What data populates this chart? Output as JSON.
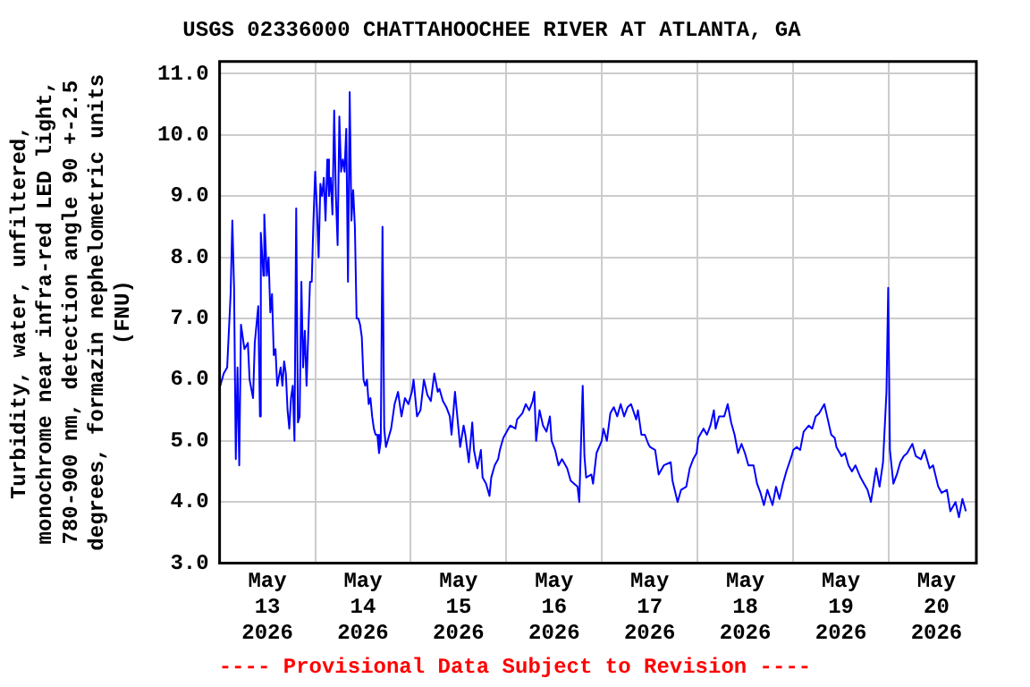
{
  "chart_data": {
    "type": "line",
    "title": "USGS 02336000 CHATTAHOOCHEE RIVER AT ATLANTA, GA",
    "ylabel": "Turbidity, water, unfiltered, monochrome near infra-red LED light, 780-900 nm, detection angle 90 +-2.5 degrees, formazin nephelometric units (FNU)",
    "annotations": [
      "---- Provisional Data Subject to Revision ----"
    ],
    "xlim": [
      "2026-05-13T00:00",
      "2026-05-20T22:00"
    ],
    "xticks": [
      {
        "value": "2026-05-13T12:00",
        "label": "May 13 2026"
      },
      {
        "value": "2026-05-14T00:00",
        "label": null
      },
      {
        "value": "2026-05-14T12:00",
        "label": "May 14 2026"
      },
      {
        "value": "2026-05-15T00:00",
        "label": null
      },
      {
        "value": "2026-05-15T12:00",
        "label": "May 15 2026"
      },
      {
        "value": "2026-05-16T00:00",
        "label": null
      },
      {
        "value": "2026-05-16T12:00",
        "label": "May 16 2026"
      },
      {
        "value": "2026-05-17T00:00",
        "label": null
      },
      {
        "value": "2026-05-17T12:00",
        "label": "May 17 2026"
      },
      {
        "value": "2026-05-18T00:00",
        "label": null
      },
      {
        "value": "2026-05-18T12:00",
        "label": "May 18 2026"
      },
      {
        "value": "2026-05-19T00:00",
        "label": null
      },
      {
        "value": "2026-05-19T12:00",
        "label": "May 19 2026"
      },
      {
        "value": "2026-05-20T00:00",
        "label": null
      },
      {
        "value": "2026-05-20T12:00",
        "label": "May 20 2026"
      }
    ],
    "ylim": [
      3,
      11.2
    ],
    "yticks": [
      {
        "value": 3,
        "label": "3.0"
      },
      {
        "value": 4,
        "label": "4.0"
      },
      {
        "value": 5,
        "label": "5.0"
      },
      {
        "value": 6,
        "label": "6.0"
      },
      {
        "value": 7,
        "label": "7.0"
      },
      {
        "value": 8,
        "label": "8.0"
      },
      {
        "value": 9,
        "label": "9.0"
      },
      {
        "value": 10,
        "label": "10.0"
      },
      {
        "value": 11,
        "label": "11.0"
      }
    ],
    "grid": true,
    "legend": false,
    "marker": "none",
    "line_style": "solid",
    "series": [
      {
        "color": "#0000ff",
        "x": [
          "2026-05-13T00:10",
          "2026-05-13T01:02",
          "2026-05-13T01:54",
          "2026-05-13T02:46",
          "2026-05-13T03:12",
          "2026-05-13T03:38",
          "2026-05-13T04:04",
          "2026-05-13T04:30",
          "2026-05-13T04:56",
          "2026-05-13T05:22",
          "2026-05-13T06:14",
          "2026-05-13T07:06",
          "2026-05-13T07:32",
          "2026-05-13T08:24",
          "2026-05-13T08:50",
          "2026-05-13T09:42",
          "2026-05-13T10:08",
          "2026-05-13T10:21",
          "2026-05-13T11:00",
          "2026-05-13T11:13",
          "2026-05-13T11:52",
          "2026-05-13T12:18",
          "2026-05-13T12:44",
          "2026-05-13T13:10",
          "2026-05-13T13:36",
          "2026-05-13T14:02",
          "2026-05-13T14:28",
          "2026-05-13T15:20",
          "2026-05-13T15:46",
          "2026-05-13T16:12",
          "2026-05-13T16:38",
          "2026-05-13T17:04",
          "2026-05-13T17:30",
          "2026-05-13T17:56",
          "2026-05-13T18:22",
          "2026-05-13T18:48",
          "2026-05-13T19:14",
          "2026-05-13T19:40",
          "2026-05-13T20:06",
          "2026-05-13T20:32",
          "2026-05-13T20:58",
          "2026-05-13T21:24",
          "2026-05-13T21:50",
          "2026-05-13T22:42",
          "2026-05-13T23:08",
          "2026-05-13T23:34",
          "2026-05-14T00:00",
          "2026-05-14T00:26",
          "2026-05-14T00:52",
          "2026-05-14T01:18",
          "2026-05-14T01:44",
          "2026-05-14T02:10",
          "2026-05-14T02:36",
          "2026-05-14T03:02",
          "2026-05-14T03:28",
          "2026-05-14T03:54",
          "2026-05-14T04:20",
          "2026-05-14T04:46",
          "2026-05-14T05:12",
          "2026-05-14T05:38",
          "2026-05-14T06:04",
          "2026-05-14T06:30",
          "2026-05-14T06:56",
          "2026-05-14T07:22",
          "2026-05-14T07:48",
          "2026-05-14T08:14",
          "2026-05-14T08:40",
          "2026-05-14T09:06",
          "2026-05-14T09:32",
          "2026-05-14T09:58",
          "2026-05-14T10:24",
          "2026-05-14T10:50",
          "2026-05-14T11:16",
          "2026-05-14T11:42",
          "2026-05-14T12:08",
          "2026-05-14T12:34",
          "2026-05-14T13:00",
          "2026-05-14T13:26",
          "2026-05-14T13:52",
          "2026-05-14T14:18",
          "2026-05-14T14:44",
          "2026-05-14T15:10",
          "2026-05-14T15:36",
          "2026-05-14T16:02",
          "2026-05-14T16:28",
          "2026-05-14T16:54",
          "2026-05-14T17:20",
          "2026-05-14T17:46",
          "2026-05-14T18:12",
          "2026-05-14T19:04",
          "2026-05-14T19:56",
          "2026-05-14T20:48",
          "2026-05-14T21:40",
          "2026-05-14T22:32",
          "2026-05-14T23:24",
          "2026-05-15T00:16",
          "2026-05-15T00:42",
          "2026-05-15T01:34",
          "2026-05-15T02:26",
          "2026-05-15T03:18",
          "2026-05-15T04:10",
          "2026-05-15T05:02",
          "2026-05-15T05:54",
          "2026-05-15T06:46",
          "2026-05-15T07:12",
          "2026-05-15T08:04",
          "2026-05-15T08:56",
          "2026-05-15T09:48",
          "2026-05-15T10:14",
          "2026-05-15T11:06",
          "2026-05-15T11:32",
          "2026-05-15T12:24",
          "2026-05-15T13:16",
          "2026-05-15T13:42",
          "2026-05-15T14:34",
          "2026-05-15T15:26",
          "2026-05-15T15:52",
          "2026-05-15T16:44",
          "2026-05-15T17:36",
          "2026-05-15T18:02",
          "2026-05-15T18:54",
          "2026-05-15T19:46",
          "2026-05-15T20:12",
          "2026-05-15T21:04",
          "2026-05-15T21:56",
          "2026-05-15T22:22",
          "2026-05-15T23:14",
          "2026-05-16T00:06",
          "2026-05-16T00:58",
          "2026-05-16T02:16",
          "2026-05-16T02:42",
          "2026-05-16T04:00",
          "2026-05-16T04:52",
          "2026-05-16T05:44",
          "2026-05-16T06:36",
          "2026-05-16T07:02",
          "2026-05-16T07:28",
          "2026-05-16T08:20",
          "2026-05-16T09:12",
          "2026-05-16T10:04",
          "2026-05-16T10:56",
          "2026-05-16T11:22",
          "2026-05-16T12:14",
          "2026-05-16T13:06",
          "2026-05-16T13:58",
          "2026-05-16T15:16",
          "2026-05-16T16:08",
          "2026-05-16T17:00",
          "2026-05-16T17:52",
          "2026-05-16T18:18",
          "2026-05-16T19:10",
          "2026-05-16T19:36",
          "2026-05-16T20:02",
          "2026-05-16T21:20",
          "2026-05-16T21:46",
          "2026-05-16T22:38",
          "2026-05-16T23:56",
          "2026-05-17T00:22",
          "2026-05-17T01:14",
          "2026-05-17T02:06",
          "2026-05-17T02:58",
          "2026-05-17T03:50",
          "2026-05-17T04:42",
          "2026-05-17T05:34",
          "2026-05-17T06:26",
          "2026-05-17T07:18",
          "2026-05-17T08:36",
          "2026-05-17T09:02",
          "2026-05-17T09:54",
          "2026-05-17T10:46",
          "2026-05-17T11:38",
          "2026-05-17T12:04",
          "2026-05-17T13:22",
          "2026-05-17T14:14",
          "2026-05-17T15:32",
          "2026-05-17T17:16",
          "2026-05-17T17:42",
          "2026-05-17T19:00",
          "2026-05-17T19:52",
          "2026-05-17T21:10",
          "2026-05-17T22:02",
          "2026-05-17T22:54",
          "2026-05-17T23:46",
          "2026-05-18T00:12",
          "2026-05-18T01:30",
          "2026-05-18T02:22",
          "2026-05-18T03:14",
          "2026-05-18T04:06",
          "2026-05-18T04:32",
          "2026-05-18T05:24",
          "2026-05-18T06:42",
          "2026-05-18T07:34",
          "2026-05-18T08:26",
          "2026-05-18T09:18",
          "2026-05-18T10:10",
          "2026-05-18T11:02",
          "2026-05-18T11:54",
          "2026-05-18T12:46",
          "2026-05-18T14:04",
          "2026-05-18T14:56",
          "2026-05-18T15:48",
          "2026-05-18T16:40",
          "2026-05-18T17:32",
          "2026-05-18T18:50",
          "2026-05-18T19:42",
          "2026-05-18T20:34",
          "2026-05-18T21:26",
          "2026-05-18T22:18",
          "2026-05-18T23:36",
          "2026-05-19T00:02",
          "2026-05-19T00:54",
          "2026-05-19T01:46",
          "2026-05-19T02:38",
          "2026-05-19T03:56",
          "2026-05-19T04:48",
          "2026-05-19T05:40",
          "2026-05-19T06:32",
          "2026-05-19T07:50",
          "2026-05-19T08:42",
          "2026-05-19T09:34",
          "2026-05-19T10:26",
          "2026-05-19T10:52",
          "2026-05-19T12:10",
          "2026-05-19T13:02",
          "2026-05-19T13:54",
          "2026-05-19T14:46",
          "2026-05-19T15:38",
          "2026-05-19T16:56",
          "2026-05-19T17:48",
          "2026-05-19T18:40",
          "2026-05-19T19:32",
          "2026-05-19T20:50",
          "2026-05-19T21:42",
          "2026-05-19T22:34",
          "2026-05-19T23:26",
          "2026-05-19T23:52",
          "2026-05-20T00:18",
          "2026-05-20T01:10",
          "2026-05-20T02:02",
          "2026-05-20T02:54",
          "2026-05-20T03:46",
          "2026-05-20T04:38",
          "2026-05-20T05:56",
          "2026-05-20T06:48",
          "2026-05-20T08:06",
          "2026-05-20T08:58",
          "2026-05-20T10:16",
          "2026-05-20T11:08",
          "2026-05-20T12:26",
          "2026-05-20T13:18",
          "2026-05-20T14:36",
          "2026-05-20T15:28",
          "2026-05-20T16:46",
          "2026-05-20T17:38",
          "2026-05-20T18:30",
          "2026-05-20T19:22"
        ],
        "values": [
          5.9,
          6.1,
          6.2,
          7.4,
          8.6,
          7.5,
          4.7,
          6.2,
          4.6,
          6.9,
          6.5,
          6.6,
          6.0,
          5.7,
          6.6,
          7.2,
          5.4,
          8.4,
          7.7,
          8.7,
          7.7,
          8.0,
          7.1,
          7.4,
          6.4,
          6.5,
          5.9,
          6.2,
          5.9,
          6.3,
          6.1,
          5.5,
          5.2,
          5.7,
          5.9,
          5.0,
          8.8,
          5.3,
          5.4,
          7.6,
          6.2,
          6.8,
          5.9,
          7.6,
          7.6,
          8.6,
          9.4,
          8.8,
          8.0,
          9.2,
          9.0,
          9.3,
          8.6,
          9.6,
          9.0,
          9.3,
          8.7,
          10.4,
          9.0,
          8.2,
          10.3,
          9.4,
          9.6,
          9.4,
          10.1,
          7.6,
          10.7,
          8.6,
          9.1,
          8.5,
          7.0,
          7.0,
          6.9,
          6.7,
          6.0,
          5.9,
          6.0,
          5.6,
          5.7,
          5.4,
          5.2,
          5.1,
          5.1,
          4.8,
          5.0,
          8.5,
          5.2,
          4.9,
          5.0,
          5.2,
          5.6,
          5.8,
          5.4,
          5.7,
          5.6,
          5.8,
          6.0,
          5.4,
          5.5,
          6.0,
          5.75,
          5.65,
          6.1,
          5.8,
          5.85,
          5.65,
          5.55,
          5.4,
          5.1,
          5.8,
          5.5,
          4.9,
          5.25,
          5.1,
          4.65,
          5.3,
          4.85,
          4.55,
          4.85,
          4.4,
          4.3,
          4.1,
          4.4,
          4.6,
          4.7,
          4.85,
          5.05,
          5.15,
          5.25,
          5.2,
          5.35,
          5.45,
          5.6,
          5.5,
          5.65,
          5.8,
          5.0,
          5.5,
          5.25,
          5.15,
          5.4,
          5.0,
          4.85,
          4.6,
          4.7,
          4.55,
          4.35,
          4.3,
          4.25,
          4.0,
          5.9,
          4.75,
          4.4,
          4.45,
          4.3,
          4.8,
          5.0,
          5.2,
          5.0,
          5.45,
          5.55,
          5.4,
          5.6,
          5.4,
          5.55,
          5.6,
          5.35,
          5.5,
          5.1,
          5.1,
          4.95,
          4.9,
          4.85,
          4.45,
          4.6,
          4.65,
          4.35,
          4.0,
          4.2,
          4.25,
          4.55,
          4.7,
          4.8,
          5.05,
          5.2,
          5.1,
          5.25,
          5.5,
          5.2,
          5.4,
          5.4,
          5.6,
          5.3,
          5.1,
          4.8,
          4.95,
          4.8,
          4.6,
          4.6,
          4.3,
          4.15,
          3.95,
          4.2,
          3.95,
          4.25,
          4.05,
          4.3,
          4.5,
          4.75,
          4.85,
          4.9,
          4.85,
          5.15,
          5.25,
          5.2,
          5.4,
          5.45,
          5.6,
          5.35,
          5.1,
          5.05,
          4.9,
          4.75,
          4.8,
          4.6,
          4.5,
          4.6,
          4.4,
          4.3,
          4.2,
          4.0,
          4.55,
          4.25,
          4.65,
          5.8,
          7.5,
          4.85,
          4.3,
          4.45,
          4.65,
          4.75,
          4.8,
          4.95,
          4.75,
          4.7,
          4.85,
          4.55,
          4.6,
          4.25,
          4.15,
          4.2,
          3.85,
          4.0,
          3.75,
          4.05,
          3.85
        ]
      }
    ]
  }
}
